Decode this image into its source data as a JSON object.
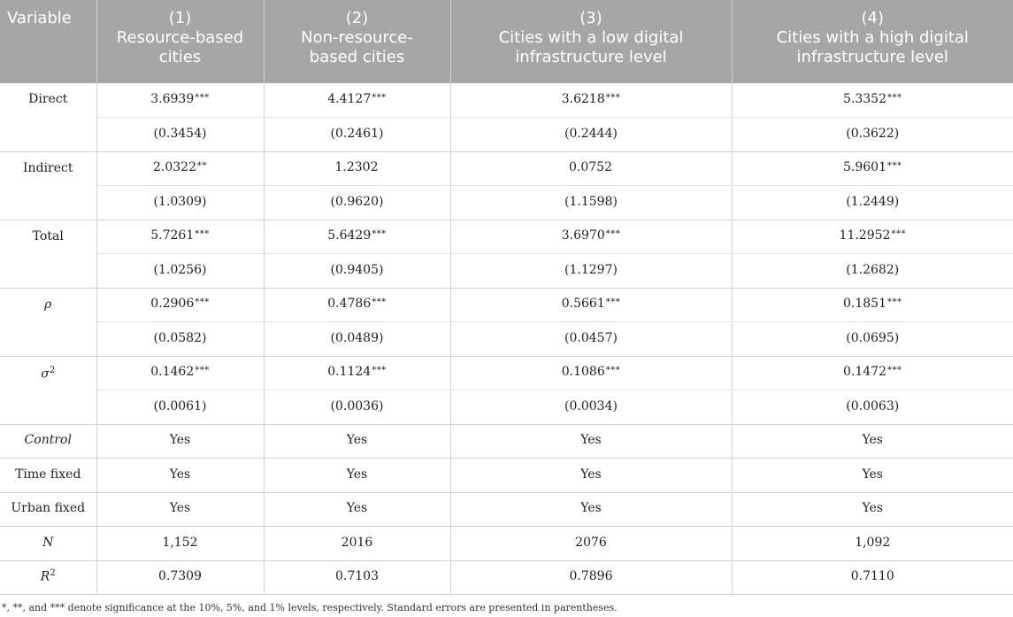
{
  "header": {
    "variable": "Variable",
    "columns": [
      {
        "num": "(1)",
        "line1": "Resource-based",
        "line2": "cities"
      },
      {
        "num": "(2)",
        "line1": "Non-resource-",
        "line2": "based cities"
      },
      {
        "num": "(3)",
        "line1": "Cities with a low digital",
        "line2": "infrastructure level"
      },
      {
        "num": "(4)",
        "line1": "Cities with a high digital",
        "line2": "infrastructure level"
      }
    ]
  },
  "rows": {
    "direct": {
      "label": "Direct",
      "coef": [
        "3.6939",
        "4.4127",
        "3.6218",
        "5.3352"
      ],
      "stars": [
        "***",
        "***",
        "***",
        "***"
      ],
      "se": [
        "(0.3454)",
        "(0.2461)",
        "(0.2444)",
        "(0.3622)"
      ]
    },
    "indirect": {
      "label": "Indirect",
      "coef": [
        "2.0322",
        "1.2302",
        "0.0752",
        "5.9601"
      ],
      "stars": [
        "**",
        "",
        "",
        "***"
      ],
      "se": [
        "(1.0309)",
        "(0.9620)",
        "(1.1598)",
        "(1.2449)"
      ]
    },
    "total": {
      "label": "Total",
      "coef": [
        "5.7261",
        "5.6429",
        "3.6970",
        "11.2952"
      ],
      "stars": [
        "***",
        "***",
        "***",
        "***"
      ],
      "se": [
        "(1.0256)",
        "(0.9405)",
        "(1.1297)",
        "(1.2682)"
      ]
    },
    "rho": {
      "label": "ρ",
      "coef": [
        "0.2906",
        "0.4786",
        "0.5661",
        "0.1851"
      ],
      "stars": [
        "***",
        "***",
        "***",
        "***"
      ],
      "se": [
        "(0.0582)",
        "(0.0489)",
        "(0.0457)",
        "(0.0695)"
      ]
    },
    "sigma": {
      "label": "σ",
      "sup": "2",
      "coef": [
        "0.1462",
        "0.1124",
        "0.1086",
        "0.1472"
      ],
      "stars": [
        "***",
        "***",
        "***",
        "***"
      ],
      "se": [
        "(0.0061)",
        "(0.0036)",
        "(0.0034)",
        "(0.0063)"
      ]
    },
    "control": {
      "label": "Control",
      "values": [
        "Yes",
        "Yes",
        "Yes",
        "Yes"
      ]
    },
    "time_fixed": {
      "label": "Time fixed",
      "values": [
        "Yes",
        "Yes",
        "Yes",
        "Yes"
      ]
    },
    "urban_fixed": {
      "label": "Urban fixed",
      "values": [
        "Yes",
        "Yes",
        "Yes",
        "Yes"
      ]
    },
    "n": {
      "label": "N",
      "values": [
        "1,152",
        "2016",
        "2076",
        "1,092"
      ]
    },
    "r2": {
      "label": "R",
      "sup": "2",
      "values": [
        "0.7309",
        "0.7103",
        "0.7896",
        "0.7110"
      ]
    }
  },
  "footnote": "*, **, and *** denote significance at the 10%, 5%, and 1% levels, respectively. Standard errors are presented in parentheses."
}
